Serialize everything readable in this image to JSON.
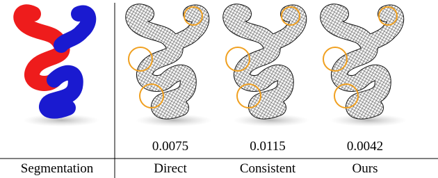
{
  "columns": [
    {
      "label": "Segmentation"
    },
    {
      "label": "Direct",
      "value": 0.0075
    },
    {
      "label": "Consistent",
      "value": 0.0115
    },
    {
      "label": "Ours",
      "value": 0.0042
    }
  ]
}
